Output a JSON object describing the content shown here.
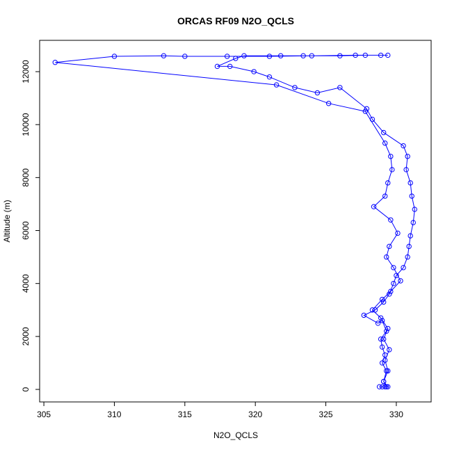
{
  "chart_data": {
    "type": "line",
    "title": "ORCAS RF09 N2O_QCLS",
    "x_label": "N2O_QCLS",
    "y_label": "Altitude (m)",
    "x": [
      329.0,
      329.2,
      328.8,
      329.4,
      329.1,
      329.3,
      329.0,
      329.2,
      329.0,
      328.9,
      329.3,
      329.0,
      328.7,
      327.7,
      328.5,
      329.1,
      329.5,
      329.8,
      330.0,
      330.5,
      330.8,
      330.9,
      331.0,
      331.2,
      331.3,
      331.1,
      331.0,
      330.7,
      330.8,
      330.5,
      329.1,
      328.3,
      327.9,
      326.0,
      324.4,
      322.8,
      321.0,
      319.9,
      318.2,
      317.3,
      318.6,
      319.2,
      321.8,
      323.4,
      326.0,
      327.8,
      328.9,
      329.4,
      327.1,
      324.0,
      321.0,
      318.0,
      315.0,
      313.5,
      310.0,
      305.8,
      321.5,
      325.2,
      327.8,
      329.2,
      329.6,
      329.7,
      329.4,
      329.2,
      328.4,
      329.6,
      330.1,
      329.5,
      329.3,
      329.8,
      330.3,
      329.6,
      329.0,
      328.3,
      328.9,
      329.4,
      329.1,
      329.5,
      329.2,
      329.4,
      329.1,
      329.3
    ],
    "series": [
      {
        "name": "N2O_QCLS",
        "color": "#0000ff",
        "values": [
          100,
          100,
          100,
          100,
          300,
          700,
          1000,
          1300,
          1600,
          1900,
          2200,
          2600,
          2500,
          2800,
          3000,
          3300,
          3600,
          4000,
          4300,
          4600,
          5000,
          5400,
          5800,
          6300,
          6800,
          7300,
          7800,
          8300,
          8800,
          9200,
          9700,
          10200,
          10600,
          11400,
          11200,
          11400,
          11800,
          12000,
          12200,
          12200,
          12500,
          12600,
          12600,
          12600,
          12600,
          12620,
          12620,
          12620,
          12620,
          12600,
          12580,
          12580,
          12580,
          12600,
          12580,
          12350,
          11500,
          10800,
          10500,
          9300,
          8800,
          8300,
          7800,
          7300,
          6900,
          6400,
          5900,
          5400,
          5000,
          4600,
          4100,
          3700,
          3400,
          3000,
          2700,
          2300,
          1900,
          1500,
          1100,
          700,
          300,
          100
        ]
      }
    ],
    "xlim": [
      304.7,
      332.47
    ],
    "ylim": [
      -473,
      13183
    ],
    "xticks": [
      305,
      310,
      315,
      320,
      325,
      330
    ],
    "yticks": [
      0,
      2000,
      4000,
      6000,
      8000,
      10000,
      12000
    ]
  }
}
